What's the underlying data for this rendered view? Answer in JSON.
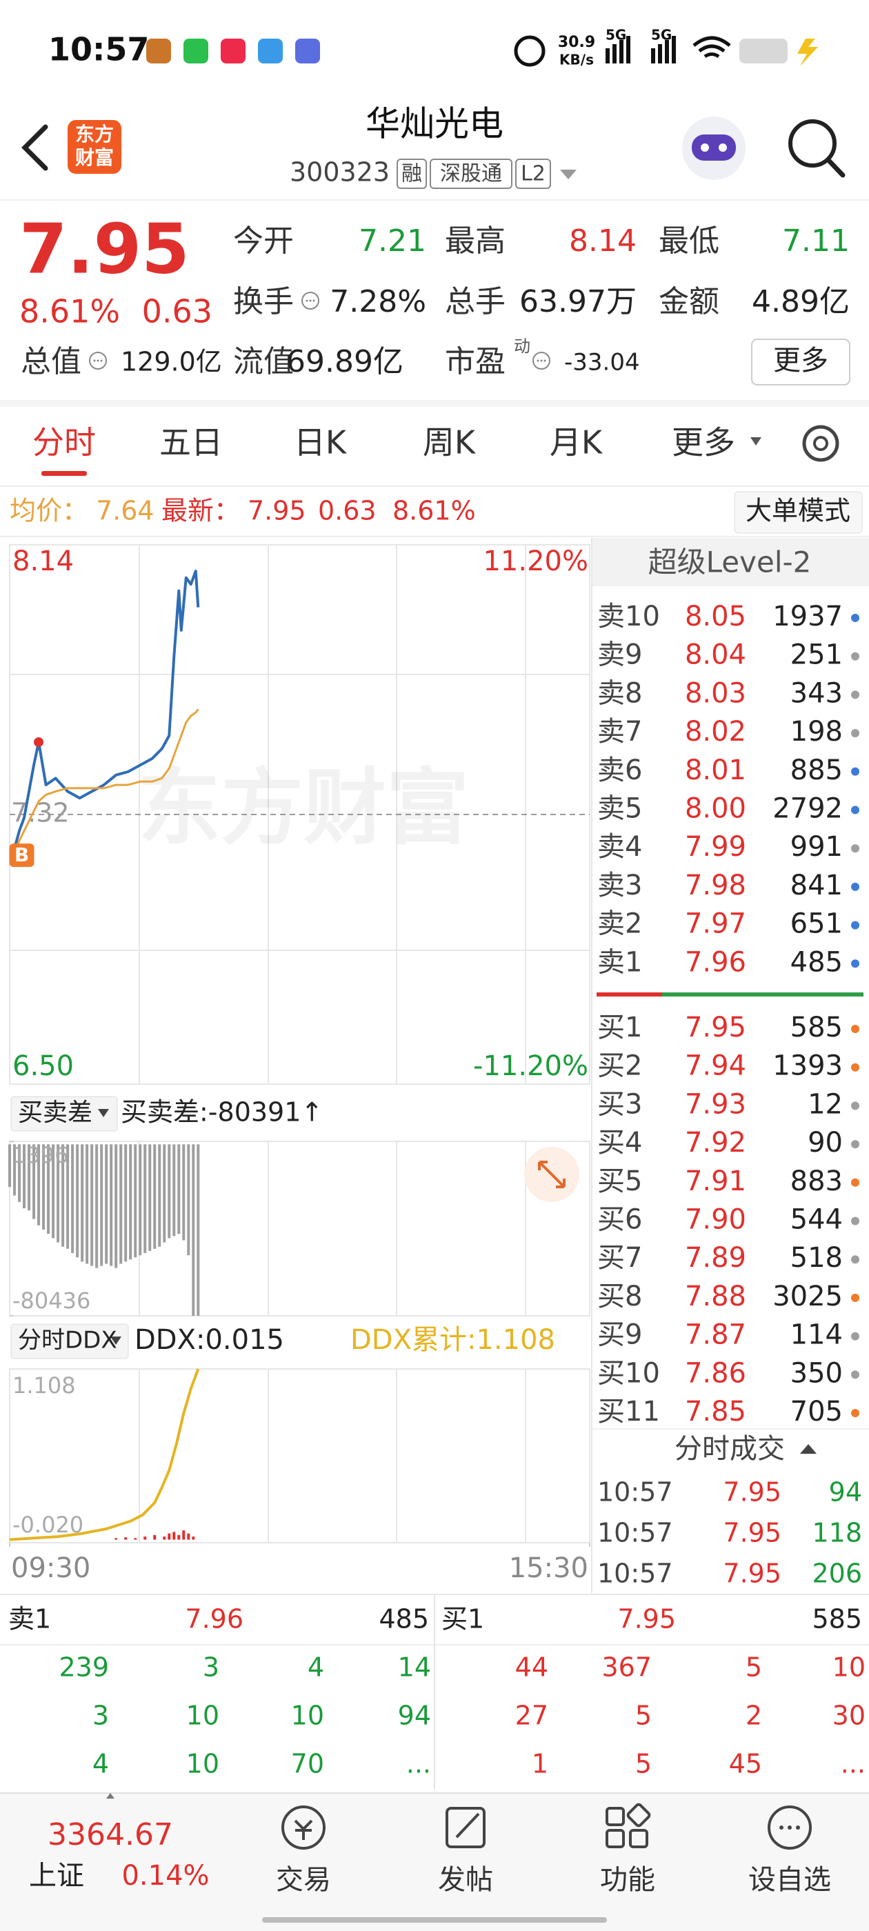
{
  "status_bar": {
    "time": "10:57",
    "speed": "30.9",
    "speed_unit": "KB/s",
    "network": [
      "5G",
      "5G"
    ]
  },
  "header": {
    "logo": [
      "东方",
      "财富"
    ],
    "title": "华灿光电",
    "code": "300323",
    "tags": [
      "融",
      "深股通",
      "L2"
    ]
  },
  "quote": {
    "price": "7.95",
    "change_pct": "8.61%",
    "change": "0.63",
    "stats": [
      {
        "label": "今开",
        "value": "7.21",
        "tone": "down"
      },
      {
        "label": "最高",
        "value": "8.14",
        "tone": "up"
      },
      {
        "label": "最低",
        "value": "7.11",
        "tone": "down"
      },
      {
        "label": "换手",
        "value": "7.28%",
        "tone": "plain",
        "info_icon": true
      },
      {
        "label": "总手",
        "value": "63.97万",
        "tone": "plain"
      },
      {
        "label": "金额",
        "value": "4.89亿",
        "tone": "plain"
      },
      {
        "label": "总值",
        "value": "129.0亿",
        "tone": "plain",
        "info_icon": true
      },
      {
        "label": "流值",
        "value": "69.89亿",
        "tone": "plain"
      },
      {
        "label": "市盈",
        "sup": "动",
        "value": "-33.04",
        "tone": "plain",
        "info_icon": true
      }
    ],
    "more": "更多"
  },
  "tabs": {
    "items": [
      "分时",
      "五日",
      "日K",
      "周K",
      "月K",
      "更多"
    ],
    "active": 0
  },
  "info_line": {
    "avg_label": "均价：",
    "avg": "7.64",
    "last_label": "最新：",
    "last": "7.95",
    "change": "0.63",
    "change_pct": "8.61%",
    "mode_button": "大单模式"
  },
  "chart_data": [
    {
      "type": "line",
      "watermark": "东方财富",
      "ylim": [
        6.5,
        8.14
      ],
      "yticks": [
        8.14,
        {
          "value": 6.5,
          "label": "6.50"
        }
      ],
      "pct_ticks": [
        {
          "value": 8.14,
          "label": "11.20%"
        },
        {
          "value": 6.5,
          "label": "-11.20%"
        }
      ],
      "prev_close": 7.32,
      "xlim": [
        0,
        240
      ],
      "x": [
        1,
        4,
        6,
        10,
        12,
        15,
        19,
        24,
        29,
        34,
        39,
        44,
        49,
        54,
        59,
        63,
        66,
        68,
        70,
        71,
        73,
        75,
        77,
        78
      ],
      "series": [
        {
          "color": "#2f6db5",
          "values": [
            7.19,
            7.27,
            7.31,
            7.47,
            7.54,
            7.41,
            7.43,
            7.39,
            7.37,
            7.39,
            7.41,
            7.44,
            7.45,
            7.47,
            7.49,
            7.52,
            7.56,
            7.8,
            8.0,
            7.88,
            8.04,
            8.02,
            8.06,
            7.95
          ]
        },
        {
          "color": "#e8a33d",
          "values": [
            7.19,
            7.24,
            7.27,
            7.33,
            7.36,
            7.38,
            7.39,
            7.4,
            7.4,
            7.4,
            7.4,
            7.41,
            7.41,
            7.42,
            7.42,
            7.43,
            7.46,
            7.5,
            7.54,
            7.56,
            7.6,
            7.62,
            7.63,
            7.64
          ]
        }
      ],
      "markers": [
        {
          "x": 12,
          "y": 7.54,
          "color": "#e0302d"
        },
        {
          "x": 5,
          "y": 7.24,
          "label": "B",
          "color": "#f07a2a"
        }
      ]
    },
    {
      "type": "bar",
      "header": "买卖差",
      "readout": "买卖差:-80391↑",
      "ylim": [
        -80436,
        1396
      ],
      "yticks": [
        1396,
        -80436
      ],
      "xlim": [
        0,
        240
      ],
      "color": "#9e9e9e",
      "x": [
        0,
        2,
        4,
        6,
        8,
        10,
        12,
        14,
        16,
        18,
        20,
        22,
        24,
        26,
        28,
        30,
        32,
        34,
        36,
        38,
        40,
        42,
        44,
        46,
        48,
        50,
        52,
        54,
        56,
        58,
        60,
        62,
        64,
        66,
        68,
        70,
        72,
        74,
        76,
        78
      ],
      "values": [
        -20000,
        -24000,
        -27000,
        -30000,
        -31000,
        -35000,
        -38000,
        -40000,
        -42000,
        -44000,
        -46000,
        -48000,
        -49000,
        -51000,
        -53000,
        -55000,
        -56000,
        -57000,
        -58000,
        -57000,
        -56000,
        -57000,
        -58000,
        -56000,
        -55000,
        -54000,
        -53000,
        -52000,
        -51000,
        -50000,
        -49000,
        -48000,
        -46000,
        -44000,
        -43000,
        -42000,
        -45000,
        -52000,
        -80436,
        -80391
      ]
    },
    {
      "type": "line",
      "header": "分时DDX",
      "readout": "DDX:0.015",
      "total": "DDX累计:1.108",
      "ylim": [
        -0.02,
        1.108
      ],
      "yticks": [
        1.108,
        {
          "value": -0.02,
          "label": "-0.020"
        }
      ],
      "xlim": [
        0,
        240
      ],
      "xticks": [
        {
          "value": 0,
          "label": "09:30"
        },
        {
          "value": 240,
          "label": "15:30"
        }
      ],
      "x": [
        0,
        10,
        20,
        30,
        40,
        50,
        55,
        60,
        63,
        66,
        69,
        72,
        75,
        78
      ],
      "series": [
        {
          "color": "#e6b422",
          "values": [
            0,
            0.01,
            0.02,
            0.04,
            0.07,
            0.12,
            0.16,
            0.24,
            0.34,
            0.45,
            0.62,
            0.82,
            0.98,
            1.108
          ]
        }
      ],
      "bars": {
        "color": "#e0302d",
        "x": [
          44,
          48,
          52,
          56,
          60,
          64,
          66,
          68,
          70,
          72,
          74,
          76
        ],
        "values": [
          0.01,
          0.015,
          0.01,
          0.02,
          0.03,
          0.02,
          0.04,
          0.05,
          0.03,
          0.06,
          0.04,
          0.02
        ]
      }
    }
  ],
  "order_book": {
    "title": "超级Level-2",
    "asks": [
      {
        "label": "卖10",
        "price": "8.05",
        "volume": "1937",
        "dot": "#3d7bd9"
      },
      {
        "label": "卖9",
        "price": "8.04",
        "volume": "251",
        "dot": "#9e9e9e"
      },
      {
        "label": "卖8",
        "price": "8.03",
        "volume": "343",
        "dot": "#9e9e9e"
      },
      {
        "label": "卖7",
        "price": "8.02",
        "volume": "198",
        "dot": "#9e9e9e"
      },
      {
        "label": "卖6",
        "price": "8.01",
        "volume": "885",
        "dot": "#3d7bd9"
      },
      {
        "label": "卖5",
        "price": "8.00",
        "volume": "2792",
        "dot": "#3d7bd9"
      },
      {
        "label": "卖4",
        "price": "7.99",
        "volume": "991",
        "dot": "#9e9e9e"
      },
      {
        "label": "卖3",
        "price": "7.98",
        "volume": "841",
        "dot": "#3d7bd9"
      },
      {
        "label": "卖2",
        "price": "7.97",
        "volume": "651",
        "dot": "#3d7bd9"
      },
      {
        "label": "卖1",
        "price": "7.96",
        "volume": "485",
        "dot": "#3d7bd9"
      }
    ],
    "bids": [
      {
        "label": "买1",
        "price": "7.95",
        "volume": "585",
        "dot": "#f07a2a"
      },
      {
        "label": "买2",
        "price": "7.94",
        "volume": "1393",
        "dot": "#f07a2a"
      },
      {
        "label": "买3",
        "price": "7.93",
        "volume": "12",
        "dot": "#9e9e9e"
      },
      {
        "label": "买4",
        "price": "7.92",
        "volume": "90",
        "dot": "#9e9e9e"
      },
      {
        "label": "买5",
        "price": "7.91",
        "volume": "883",
        "dot": "#f07a2a"
      },
      {
        "label": "买6",
        "price": "7.90",
        "volume": "544",
        "dot": "#9e9e9e"
      },
      {
        "label": "买7",
        "price": "7.89",
        "volume": "518",
        "dot": "#9e9e9e"
      },
      {
        "label": "买8",
        "price": "7.88",
        "volume": "3025",
        "dot": "#f07a2a"
      },
      {
        "label": "买9",
        "price": "7.87",
        "volume": "114",
        "dot": "#9e9e9e"
      },
      {
        "label": "买10",
        "price": "7.86",
        "volume": "350",
        "dot": "#9e9e9e"
      },
      {
        "label": "买11",
        "price": "7.85",
        "volume": "705",
        "dot": "#f07a2a"
      }
    ]
  },
  "trades": {
    "title": "分时成交",
    "rows": [
      [
        "10:57",
        "7.95",
        "94"
      ],
      [
        "10:57",
        "7.95",
        "118"
      ],
      [
        "10:57",
        "7.95",
        "206"
      ]
    ]
  },
  "depth_table": {
    "ask": {
      "label": "卖1",
      "price": "7.96",
      "volume": "485"
    },
    "bid": {
      "label": "买1",
      "price": "7.95",
      "volume": "585"
    },
    "ask_rows": [
      [
        "239",
        "3",
        "4",
        "14"
      ],
      [
        "3",
        "10",
        "10",
        "94"
      ],
      [
        "4",
        "10",
        "70",
        "..."
      ]
    ],
    "bid_rows": [
      [
        "44",
        "367",
        "5",
        "10"
      ],
      [
        "27",
        "5",
        "2",
        "30"
      ],
      [
        "1",
        "5",
        "45",
        "..."
      ]
    ]
  },
  "bottom_nav": {
    "index_value": "3364.67",
    "index_name": "上证",
    "index_change": "0.14%",
    "items": [
      "交易",
      "发帖",
      "功能",
      "设自选"
    ]
  }
}
